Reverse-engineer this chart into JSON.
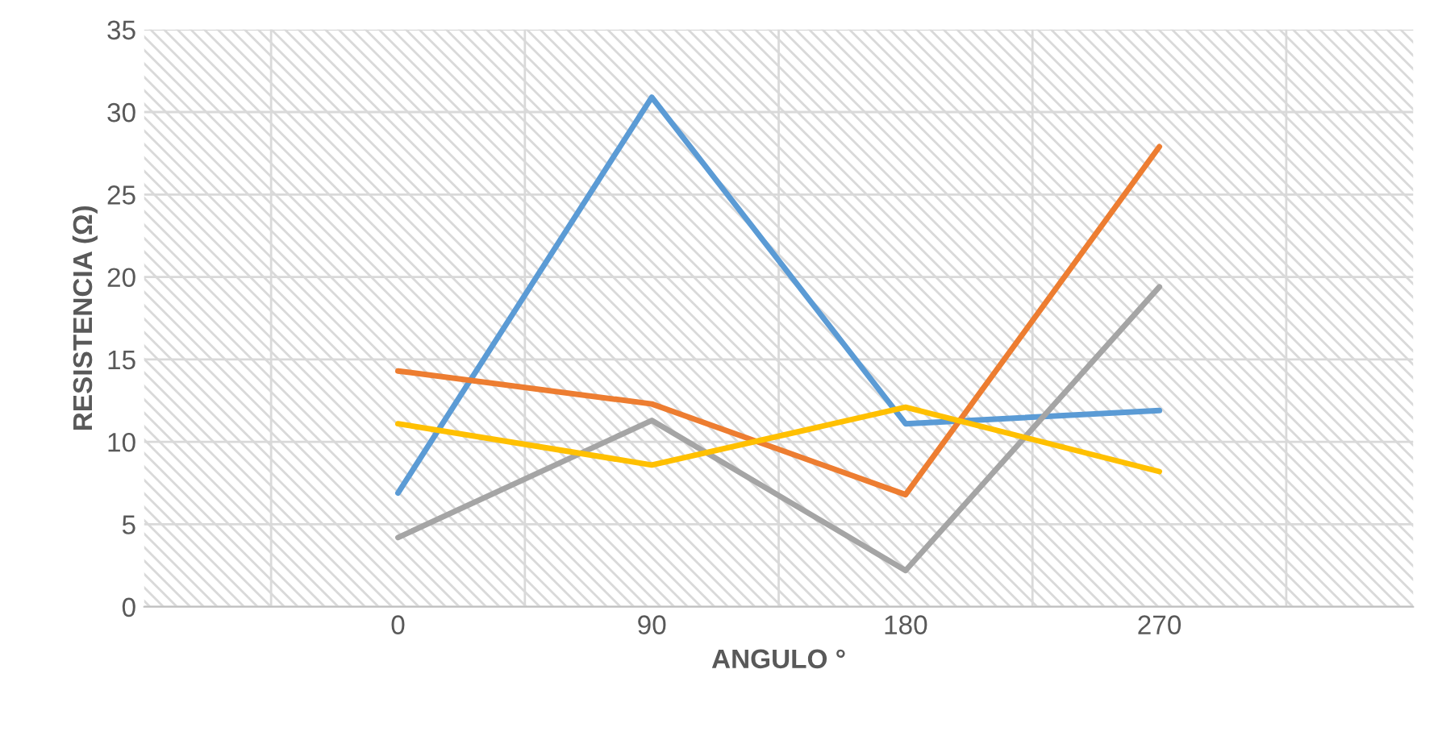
{
  "chart_data": {
    "type": "line",
    "xlabel": "ANGULO °",
    "ylabel": "RESISTENCIA (Ω)",
    "categories": [
      "0",
      "90",
      "180",
      "270"
    ],
    "series": [
      {
        "color": "#5b9bd5",
        "values": [
          6.9,
          30.9,
          11.1,
          11.9
        ]
      },
      {
        "color": "#ed7d31",
        "values": [
          14.3,
          12.3,
          6.8,
          27.9
        ]
      },
      {
        "color": "#a5a5a5",
        "values": [
          4.2,
          11.3,
          2.2,
          19.4
        ]
      },
      {
        "color": "#ffc000",
        "values": [
          11.1,
          8.6,
          12.1,
          8.2
        ]
      }
    ],
    "ylim": [
      0,
      35
    ],
    "yticks": [
      0,
      5,
      10,
      15,
      20,
      25,
      30,
      35
    ],
    "grid": true,
    "marker": "none",
    "line_style": "solid"
  }
}
